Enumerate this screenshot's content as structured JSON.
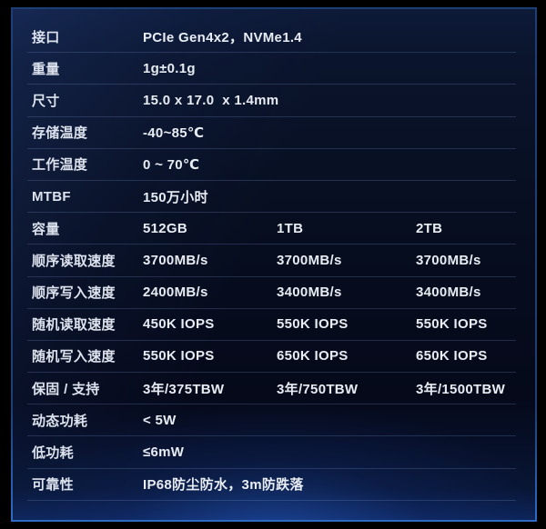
{
  "panel": {
    "border_color": "#1c4076",
    "border_bottom_color": "#2e6cc4",
    "background_top_color": "#0d1a38",
    "background_mid_color": "#070e20",
    "bottom_glow_color": "#2d6ee6",
    "divider_color": "rgba(135,165,225,0.22)",
    "text_color": "#e8ecf3",
    "label_color": "#dde3ee"
  },
  "table": {
    "rows": [
      {
        "label": "接口",
        "values": [
          "PCIe Gen4x2，NVMe1.4"
        ]
      },
      {
        "label": "重量",
        "values": [
          "1g±0.1g"
        ]
      },
      {
        "label": "尺寸",
        "values": [
          "15.0 x 17.0  x 1.4mm"
        ]
      },
      {
        "label": "存储温度",
        "values": [
          "-40~85℃"
        ]
      },
      {
        "label": "工作温度",
        "values": [
          "0 ~ 70℃"
        ]
      },
      {
        "label": "MTBF",
        "values": [
          "150万小时"
        ]
      },
      {
        "label": "容量",
        "values": [
          "512GB",
          "1TB",
          "2TB"
        ]
      },
      {
        "label": "顺序读取速度",
        "values": [
          "3700MB/s",
          "3700MB/s",
          "3700MB/s"
        ]
      },
      {
        "label": "顺序写入速度",
        "values": [
          "2400MB/s",
          "3400MB/s",
          "3400MB/s"
        ]
      },
      {
        "label": "随机读取速度",
        "values": [
          "450K IOPS",
          "550K IOPS",
          "550K IOPS"
        ]
      },
      {
        "label": "随机写入速度",
        "values": [
          "550K IOPS",
          "650K IOPS",
          "650K IOPS"
        ]
      },
      {
        "label": "保固 / 支持",
        "values": [
          "3年/375TBW",
          "3年/750TBW",
          "3年/1500TBW"
        ]
      },
      {
        "label": "动态功耗",
        "values": [
          "< 5W"
        ]
      },
      {
        "label": "低功耗",
        "values": [
          "≤6mW"
        ]
      },
      {
        "label": "可靠性",
        "values": [
          "IP68防尘防水，3m防跌落"
        ]
      }
    ]
  }
}
